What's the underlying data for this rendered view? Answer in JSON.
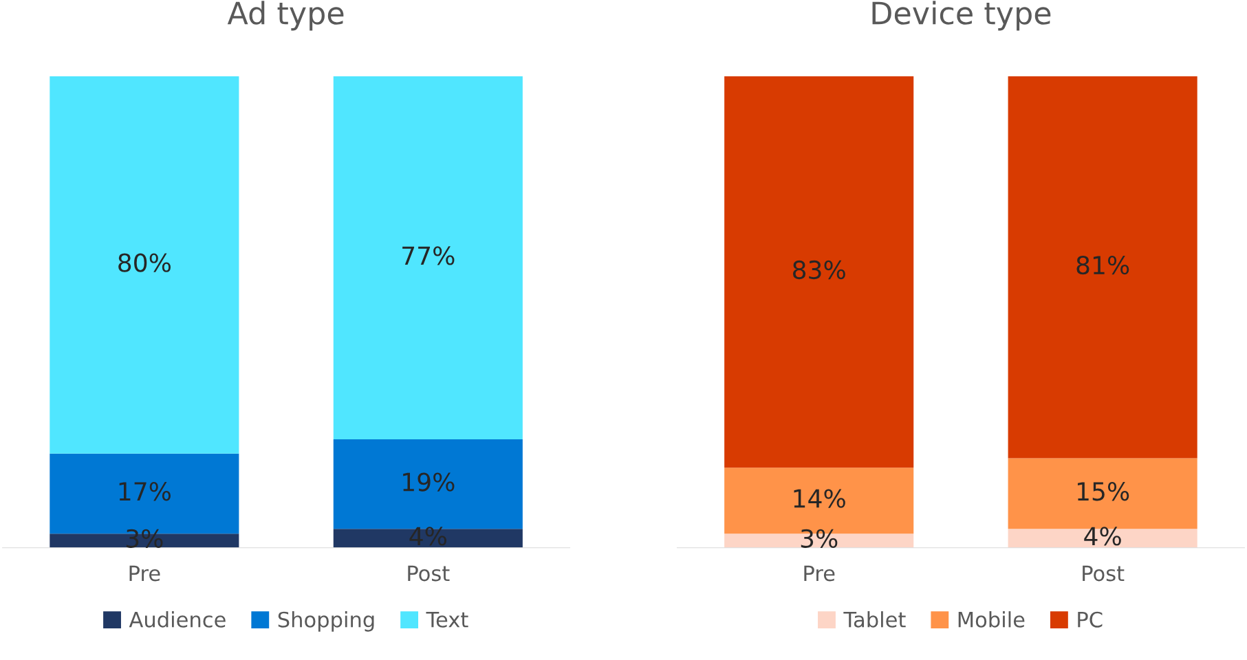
{
  "chart_data": [
    {
      "type": "bar",
      "title": "Ad type",
      "categories": [
        "Pre",
        "Post"
      ],
      "stacked": true,
      "legend": "bottom",
      "grid": false,
      "tick_labels": "x",
      "series": [
        {
          "name": "Audience",
          "color": "#203864",
          "values": [
            3,
            4
          ],
          "value_labels": [
            "3%",
            "4%"
          ]
        },
        {
          "name": "Shopping",
          "color": "#0078d4",
          "values": [
            17,
            19
          ],
          "value_labels": [
            "17%",
            "19%"
          ]
        },
        {
          "name": "Text",
          "color": "#50e6ff",
          "values": [
            80,
            77
          ],
          "value_labels": [
            "80%",
            "77%"
          ]
        }
      ]
    },
    {
      "type": "bar",
      "title": "Device type",
      "categories": [
        "Pre",
        "Post"
      ],
      "stacked": true,
      "legend": "bottom",
      "grid": false,
      "tick_labels": "x",
      "series": [
        {
          "name": "Tablet",
          "color": "#fdd5c6",
          "values": [
            3,
            4
          ],
          "value_labels": [
            "3%",
            "4%"
          ]
        },
        {
          "name": "Mobile",
          "color": "#ff9349",
          "values": [
            14,
            15
          ],
          "value_labels": [
            "14%",
            "15%"
          ]
        },
        {
          "name": "PC",
          "color": "#d83b01",
          "values": [
            83,
            81
          ],
          "value_labels": [
            "83%",
            "81%"
          ]
        }
      ]
    }
  ]
}
